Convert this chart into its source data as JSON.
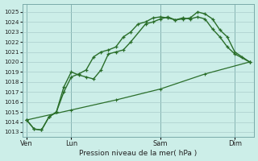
{
  "title": "Pression niveau de la mer( hPa )",
  "bg_color": "#cceee8",
  "grid_color": "#aacccc",
  "line_color": "#2a6e2a",
  "ylim": [
    1012.5,
    1025.8
  ],
  "yticks": [
    1013,
    1014,
    1015,
    1016,
    1017,
    1018,
    1019,
    1020,
    1021,
    1022,
    1023,
    1024,
    1025
  ],
  "xtick_labels": [
    "Ven",
    "Lun",
    "Sam",
    "Dim"
  ],
  "xtick_positions": [
    0,
    3,
    9,
    14
  ],
  "vline_positions": [
    0,
    3,
    9,
    14
  ],
  "series1_x": [
    0,
    0.5,
    1,
    1.5,
    2,
    2.5,
    3,
    3.5,
    4,
    4.5,
    5,
    5.5,
    6,
    6.5,
    7,
    7.5,
    8,
    8.5,
    9,
    9.5,
    10,
    10.5,
    11,
    11.5,
    12,
    12.5,
    13,
    13.5,
    14,
    14.5,
    15
  ],
  "series1_y": [
    1014.2,
    1013.3,
    1013.2,
    1014.5,
    1015.0,
    1017.0,
    1018.5,
    1018.8,
    1019.2,
    1020.5,
    1021.0,
    1021.2,
    1021.5,
    1022.5,
    1023.0,
    1023.8,
    1024.0,
    1024.4,
    1024.5,
    1024.4,
    1024.2,
    1024.3,
    1024.4,
    1025.0,
    1024.8,
    1024.3,
    1023.2,
    1022.5,
    1021.0,
    1020.5,
    1020.0
  ],
  "series2_x": [
    0,
    0.5,
    1,
    1.5,
    2,
    2.5,
    3,
    3.5,
    4,
    4.5,
    5,
    5.5,
    6,
    6.5,
    7,
    8,
    8.5,
    9,
    9.5,
    10,
    10.5,
    11,
    11.5,
    12,
    12.5,
    13,
    13.5,
    14,
    15
  ],
  "series2_y": [
    1014.2,
    1013.3,
    1013.2,
    1014.5,
    1015.0,
    1017.5,
    1019.0,
    1018.7,
    1018.5,
    1018.3,
    1019.2,
    1020.8,
    1021.0,
    1021.2,
    1022.0,
    1023.8,
    1024.0,
    1024.3,
    1024.5,
    1024.2,
    1024.4,
    1024.3,
    1024.5,
    1024.3,
    1023.3,
    1022.5,
    1021.5,
    1020.8,
    1020.0
  ],
  "series3_x": [
    0,
    3,
    6,
    9,
    12,
    15
  ],
  "series3_y": [
    1014.2,
    1015.2,
    1016.2,
    1017.3,
    1018.8,
    1020.0
  ]
}
